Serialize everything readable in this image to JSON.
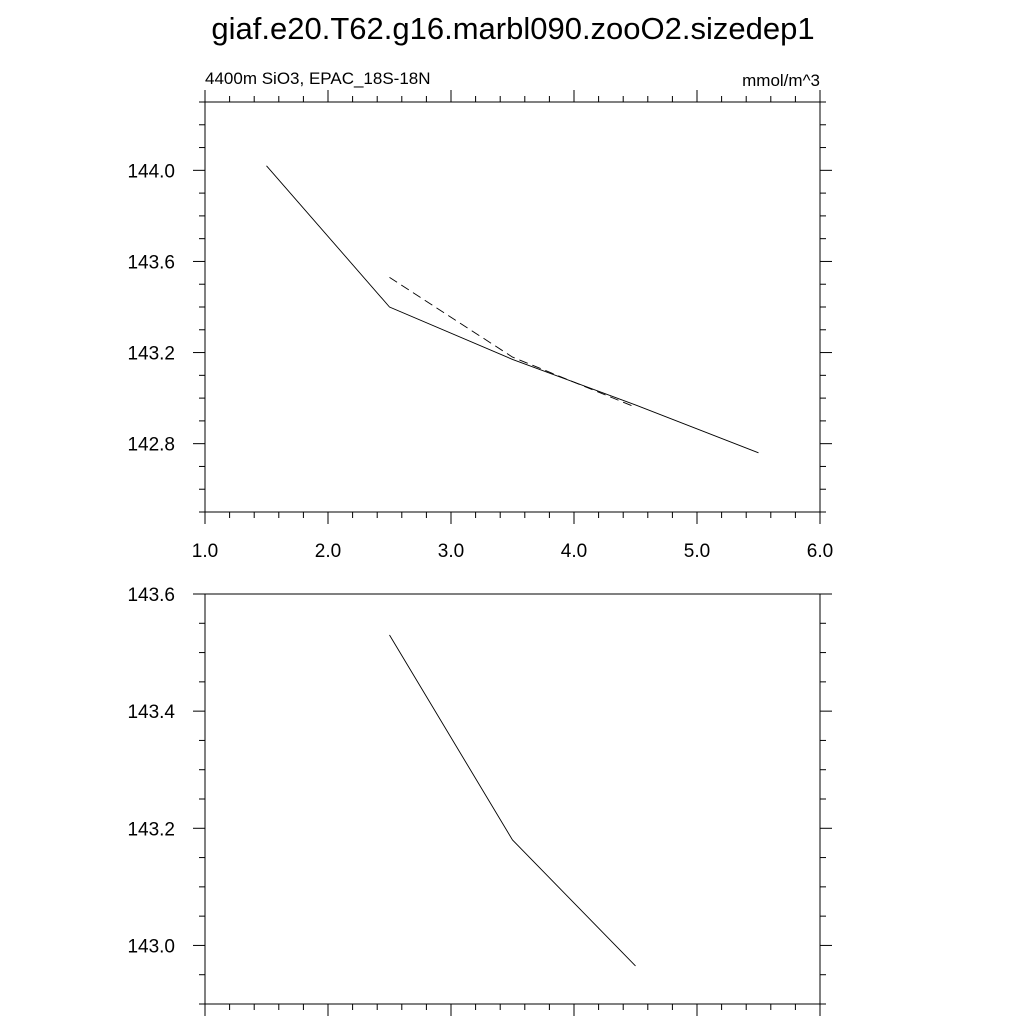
{
  "title": "giaf.e20.T62.g16.marbl090.zooO2.sizedep1",
  "chart_data": [
    {
      "type": "line",
      "left_label": "4400m SiO3, EPAC_18S-18N",
      "right_label": "mmol/m^3",
      "xlim": [
        1.0,
        6.0
      ],
      "ylim": [
        142.5,
        144.3
      ],
      "x_ticks": [
        "1.0",
        "2.0",
        "3.0",
        "4.0",
        "5.0",
        "6.0"
      ],
      "y_ticks": [
        "142.8",
        "143.2",
        "143.6",
        "144.0"
      ],
      "grid": false,
      "series": [
        {
          "style": "solid",
          "x": [
            1.5,
            2.5,
            3.5,
            4.5,
            5.5
          ],
          "y": [
            144.02,
            143.4,
            143.17,
            142.97,
            142.76
          ]
        },
        {
          "style": "dashed",
          "x": [
            2.5,
            3.5,
            4.5
          ],
          "y": [
            143.53,
            143.18,
            142.96
          ]
        }
      ]
    },
    {
      "type": "line",
      "xlim": [
        1.0,
        6.0
      ],
      "ylim": [
        142.9,
        143.6
      ],
      "y_ticks": [
        "143.0",
        "143.2",
        "143.4",
        "143.6"
      ],
      "grid": false,
      "series": [
        {
          "style": "solid",
          "x": [
            2.5,
            3.5,
            4.5
          ],
          "y": [
            143.53,
            143.18,
            142.965
          ]
        }
      ]
    }
  ]
}
